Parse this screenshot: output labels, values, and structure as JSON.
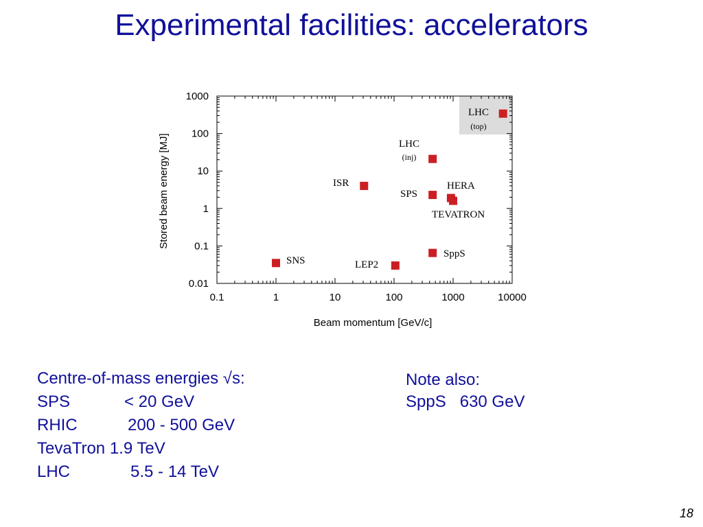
{
  "slide": {
    "title": "Experimental facilities: accelerators",
    "page_number": "18"
  },
  "chart_data": {
    "type": "scatter",
    "xlabel": "Beam momentum [GeV/c]",
    "ylabel": "Stored beam energy [MJ]",
    "x_scale": "log",
    "y_scale": "log",
    "xlim": [
      0.1,
      10000
    ],
    "ylim": [
      0.01,
      1000
    ],
    "x_ticks": [
      "0.1",
      "1",
      "10",
      "100",
      "1000",
      "10000"
    ],
    "y_ticks": [
      "0.01",
      "0.1",
      "1",
      "10",
      "100",
      "1000"
    ],
    "marker_color": "#cc1f24",
    "points": [
      {
        "label": "SNS",
        "x": 1,
        "y": 0.035
      },
      {
        "label": "ISR",
        "x": 31,
        "y": 4
      },
      {
        "label": "LEP2",
        "x": 105,
        "y": 0.03
      },
      {
        "label": "SPS",
        "x": 450,
        "y": 2.3
      },
      {
        "label": "SppS",
        "x": 450,
        "y": 0.065
      },
      {
        "label": "LHC (inj)",
        "x": 450,
        "y": 21
      },
      {
        "label": "HERA",
        "x": 920,
        "y": 1.9
      },
      {
        "label": "TEVATRON",
        "x": 1000,
        "y": 1.6
      },
      {
        "label": "LHC (top)",
        "x": 7000,
        "y": 340
      }
    ],
    "annotations": [
      {
        "text": "SNS",
        "for": "SNS"
      },
      {
        "text": "ISR",
        "for": "ISR"
      },
      {
        "text": "LEP2",
        "for": "LEP2"
      },
      {
        "text": "SPS",
        "for": "SPS"
      },
      {
        "text": "SppS",
        "for": "SppS"
      },
      {
        "text": "LHC",
        "for": "LHC (inj)"
      },
      {
        "text": "(inj)",
        "for": "LHC (inj)"
      },
      {
        "text": "HERA",
        "for": "HERA"
      },
      {
        "text": "TEVATRON",
        "for": "TEVATRON"
      },
      {
        "text": "LHC",
        "for": "LHC (top)"
      },
      {
        "text": "(top)",
        "for": "LHC (top)"
      }
    ],
    "highlight_box_color": "#dcdcdc",
    "grid": false
  },
  "notes_left": {
    "heading": "Centre-of-mass energies √s:",
    "rows": [
      {
        "name": "SPS",
        "value": "< 20 GeV"
      },
      {
        "name": "RHIC",
        "value": "200 - 500 GeV"
      },
      {
        "name": "TevaTron 1.9 TeV",
        "value": ""
      },
      {
        "name": "LHC",
        "value": "5.5 - 14 TeV"
      }
    ]
  },
  "notes_right": {
    "heading": "Note also:",
    "line": "SppS   630 GeV"
  }
}
